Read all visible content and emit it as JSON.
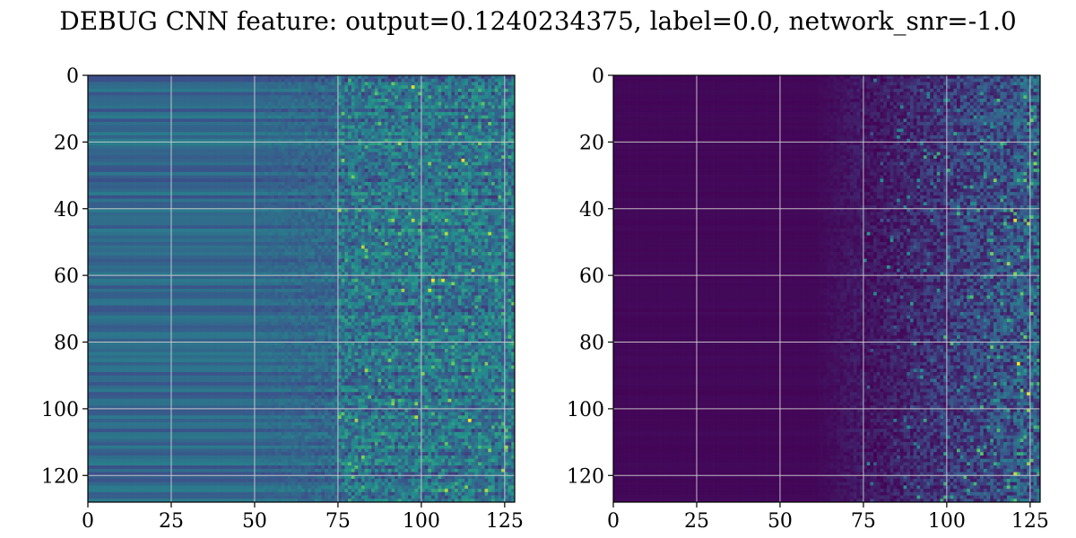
{
  "figure": {
    "title": "DEBUG CNN feature: output=0.1240234375, label=0.0, network_snr=-1.0"
  },
  "chart_data": [
    {
      "type": "heatmap",
      "panel": "left",
      "title": "",
      "xlabel": "",
      "ylabel": "",
      "x_range": [
        0,
        128
      ],
      "y_range": [
        0,
        128
      ],
      "y_inverted": true,
      "grid": true,
      "colormap": "viridis",
      "colormap_stops": [
        "#440154",
        "#3b528b",
        "#21918c",
        "#5ec962",
        "#fde725"
      ],
      "x_ticks": [
        0,
        25,
        50,
        75,
        100,
        125
      ],
      "y_ticks": [
        0,
        20,
        40,
        60,
        80,
        100,
        120
      ],
      "size": [
        128,
        128
      ],
      "description_levels": {
        "smooth_columns_end": 75,
        "smooth_band_intensity": 0.33,
        "noisy_region_intensity": 0.38
      },
      "hot_spots": [
        {
          "x": 97,
          "y": 3,
          "v": 0.95
        },
        {
          "x": 112,
          "y": 25,
          "v": 0.95
        },
        {
          "x": 97,
          "y": 43,
          "v": 0.9
        },
        {
          "x": 103,
          "y": 61,
          "v": 1.0
        },
        {
          "x": 106,
          "y": 61,
          "v": 0.95
        },
        {
          "x": 102,
          "y": 64,
          "v": 0.9
        },
        {
          "x": 94,
          "y": 64,
          "v": 0.85
        },
        {
          "x": 114,
          "y": 103,
          "v": 1.0
        },
        {
          "x": 80,
          "y": 103,
          "v": 0.85
        }
      ]
    },
    {
      "type": "heatmap",
      "panel": "right",
      "title": "",
      "xlabel": "",
      "ylabel": "",
      "x_range": [
        0,
        128
      ],
      "y_range": [
        0,
        128
      ],
      "y_inverted": true,
      "grid": true,
      "colormap": "viridis",
      "colormap_stops": [
        "#440154",
        "#3b528b",
        "#21918c",
        "#5ec962",
        "#fde725"
      ],
      "x_ticks": [
        0,
        25,
        50,
        75,
        100,
        125
      ],
      "y_ticks": [
        0,
        20,
        40,
        60,
        80,
        100,
        120
      ],
      "size": [
        128,
        128
      ],
      "description_levels": {
        "dark_columns_end": 75,
        "dark_intensity": 0.02,
        "noisy_region_intensity": 0.22
      },
      "hot_spots": [
        {
          "x": 120,
          "y": 43,
          "v": 0.95
        },
        {
          "x": 121,
          "y": 86,
          "v": 1.0
        },
        {
          "x": 124,
          "y": 95,
          "v": 0.95
        },
        {
          "x": 120,
          "y": 119,
          "v": 0.9
        },
        {
          "x": 118,
          "y": 56,
          "v": 0.85
        },
        {
          "x": 114,
          "y": 31,
          "v": 0.8
        }
      ]
    }
  ]
}
